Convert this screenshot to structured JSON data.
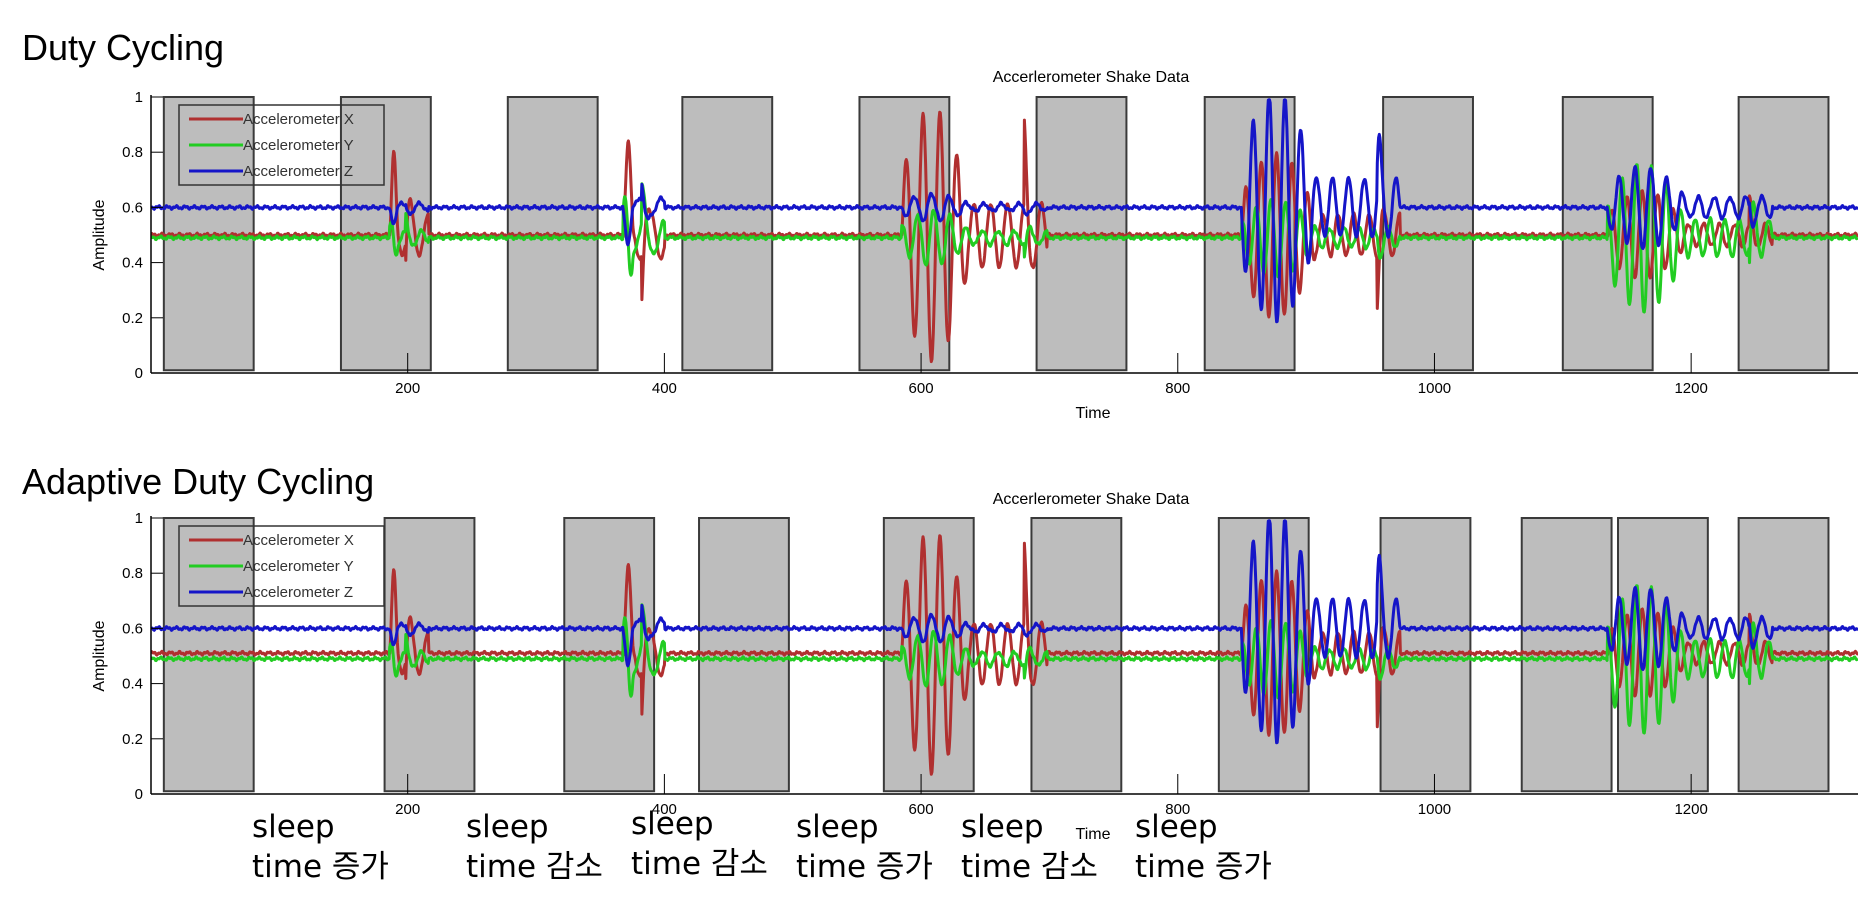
{
  "chart_data": [
    {
      "type": "line",
      "section_title": "Duty Cycling",
      "title": "Accerlerometer Shake Data",
      "xlabel": "Time",
      "ylabel": "Amplitude",
      "xlim": [
        0,
        1330
      ],
      "ylim": [
        0,
        1
      ],
      "xticks": [
        200,
        400,
        600,
        800,
        1000,
        1200
      ],
      "yticks": [
        0,
        0.2,
        0.4,
        0.6,
        0.8,
        1
      ],
      "legend_position": "top-left",
      "grid": false,
      "sleep_windows": [
        [
          10,
          80
        ],
        [
          148,
          218
        ],
        [
          278,
          348
        ],
        [
          414,
          484
        ],
        [
          552,
          622
        ],
        [
          690,
          760
        ],
        [
          821,
          891
        ],
        [
          960,
          1030
        ],
        [
          1100,
          1170
        ],
        [
          1237,
          1307
        ]
      ],
      "series": [
        {
          "name": "Accelerometer X",
          "color": "#b03030",
          "baseline": 0.5,
          "events": [
            [
              186,
              198,
              0.3,
              0.22
            ],
            [
              368,
              382,
              0.34,
              0.28
            ],
            [
              585,
              680,
              0.46,
              0.22
            ],
            [
              850,
              955,
              0.3,
              0.2
            ],
            [
              1135,
              1245,
              0.16,
              0.2
            ]
          ]
        },
        {
          "name": "Accelerometer Y",
          "color": "#22cc22",
          "baseline": 0.49,
          "events": [
            [
              186,
              198,
              0.1,
              0.22
            ],
            [
              368,
              382,
              0.24,
              0.28
            ],
            [
              585,
              680,
              0.1,
              0.22
            ],
            [
              850,
              955,
              0.14,
              0.2
            ],
            [
              1135,
              1245,
              0.27,
              0.2
            ]
          ]
        },
        {
          "name": "Accelerometer Z",
          "color": "#1515c8",
          "baseline": 0.6,
          "events": [
            [
              186,
              198,
              0.06,
              0.22
            ],
            [
              368,
              382,
              0.13,
              0.28
            ],
            [
              585,
              680,
              0.05,
              0.22
            ],
            [
              850,
              955,
              0.42,
              0.2
            ],
            [
              1135,
              1245,
              0.15,
              0.2
            ]
          ]
        }
      ]
    },
    {
      "type": "line",
      "section_title": "Adaptive Duty Cycling",
      "title": "Accerlerometer Shake Data",
      "xlabel": "Time",
      "ylabel": "Amplitude",
      "xlim": [
        0,
        1330
      ],
      "ylim": [
        0,
        1
      ],
      "xticks": [
        200,
        400,
        600,
        800,
        1000,
        1200
      ],
      "yticks": [
        0,
        0.2,
        0.4,
        0.6,
        0.8,
        1
      ],
      "legend_position": "top-left",
      "grid": false,
      "sleep_windows": [
        [
          10,
          80
        ],
        [
          182,
          252
        ],
        [
          322,
          392
        ],
        [
          427,
          497
        ],
        [
          571,
          641
        ],
        [
          686,
          756
        ],
        [
          832,
          902
        ],
        [
          958,
          1028
        ],
        [
          1068,
          1138
        ],
        [
          1143,
          1213
        ],
        [
          1237,
          1307
        ]
      ],
      "series": [
        {
          "name": "Accelerometer X",
          "color": "#b03030",
          "baseline": 0.51,
          "events": [
            [
              186,
              198,
              0.3,
              0.22
            ],
            [
              368,
              382,
              0.32,
              0.28
            ],
            [
              585,
              680,
              0.44,
              0.22
            ],
            [
              850,
              955,
              0.3,
              0.2
            ],
            [
              1135,
              1245,
              0.16,
              0.2
            ]
          ]
        },
        {
          "name": "Accelerometer Y",
          "color": "#22cc22",
          "baseline": 0.49,
          "events": [
            [
              186,
              198,
              0.1,
              0.22
            ],
            [
              368,
              382,
              0.24,
              0.28
            ],
            [
              585,
              680,
              0.1,
              0.22
            ],
            [
              850,
              955,
              0.14,
              0.2
            ],
            [
              1135,
              1245,
              0.27,
              0.2
            ]
          ]
        },
        {
          "name": "Accelerometer Z",
          "color": "#1515c8",
          "baseline": 0.6,
          "events": [
            [
              186,
              198,
              0.06,
              0.22
            ],
            [
              368,
              382,
              0.13,
              0.28
            ],
            [
              585,
              680,
              0.05,
              0.22
            ],
            [
              850,
              955,
              0.42,
              0.2
            ],
            [
              1135,
              1245,
              0.15,
              0.2
            ]
          ]
        }
      ]
    }
  ],
  "annotations": [
    {
      "line1": "sleep",
      "line2": "time 증가"
    },
    {
      "line1": "sleep",
      "line2": "time 감소"
    },
    {
      "line1": "sleep",
      "line2": "time 감소"
    },
    {
      "line1": "sleep",
      "line2": "time 증가"
    },
    {
      "line1": "sleep",
      "line2": "time 감소"
    },
    {
      "line1": "sleep",
      "line2": "time 증가"
    }
  ]
}
